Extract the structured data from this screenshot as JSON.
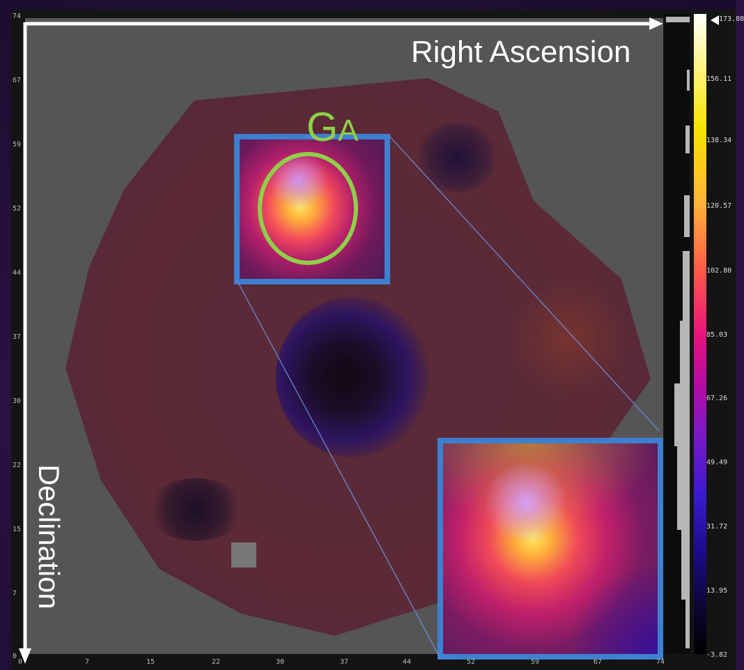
{
  "labels": {
    "ga_main": "G",
    "ga_sub": "A",
    "right_ascension": "Right Ascension",
    "declination": "Declination"
  },
  "y_ticks": [
    "74",
    "67",
    "59",
    "52",
    "44",
    "37",
    "30",
    "22",
    "15",
    "7",
    "0"
  ],
  "x_ticks": [
    "0",
    "7",
    "15",
    "22",
    "30",
    "37",
    "44",
    "52",
    "59",
    "67",
    "74"
  ],
  "colorbar_ticks": [
    "173.88",
    "156.11",
    "138.34",
    "120.57",
    "102.80",
    "85.03",
    "67.26",
    "49.49",
    "31.72",
    "13.95",
    "-3.82"
  ],
  "colors": {
    "roi_border": "#3f7fcf",
    "ga_outline": "#8ed148",
    "axis_arrows": "#ffffff"
  }
}
